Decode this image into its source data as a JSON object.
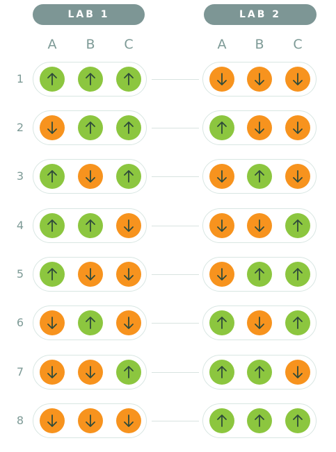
{
  "labs": [
    {
      "label": "LAB 1",
      "columns": [
        "A",
        "B",
        "C"
      ]
    },
    {
      "label": "LAB 2",
      "columns": [
        "A",
        "B",
        "C"
      ]
    }
  ],
  "rows": [
    {
      "label": "1",
      "lab1": [
        "up",
        "up",
        "up"
      ],
      "lab2": [
        "down",
        "down",
        "down"
      ]
    },
    {
      "label": "2",
      "lab1": [
        "down",
        "up",
        "up"
      ],
      "lab2": [
        "up",
        "down",
        "down"
      ]
    },
    {
      "label": "3",
      "lab1": [
        "up",
        "down",
        "up"
      ],
      "lab2": [
        "down",
        "up",
        "down"
      ]
    },
    {
      "label": "4",
      "lab1": [
        "up",
        "up",
        "down"
      ],
      "lab2": [
        "down",
        "down",
        "up"
      ]
    },
    {
      "label": "5",
      "lab1": [
        "up",
        "down",
        "down"
      ],
      "lab2": [
        "down",
        "up",
        "up"
      ]
    },
    {
      "label": "6",
      "lab1": [
        "down",
        "up",
        "down"
      ],
      "lab2": [
        "up",
        "down",
        "up"
      ]
    },
    {
      "label": "7",
      "lab1": [
        "down",
        "down",
        "up"
      ],
      "lab2": [
        "up",
        "up",
        "down"
      ]
    },
    {
      "label": "8",
      "lab1": [
        "down",
        "down",
        "down"
      ],
      "lab2": [
        "up",
        "up",
        "up"
      ]
    }
  ],
  "colors": {
    "up": "#8cc63f",
    "down": "#f7931e",
    "arrow": "#2e4a3a",
    "pill": "#7d9695",
    "text": "#7d9a96"
  },
  "icons": {
    "up": "arrow-up-icon",
    "down": "arrow-down-icon"
  }
}
